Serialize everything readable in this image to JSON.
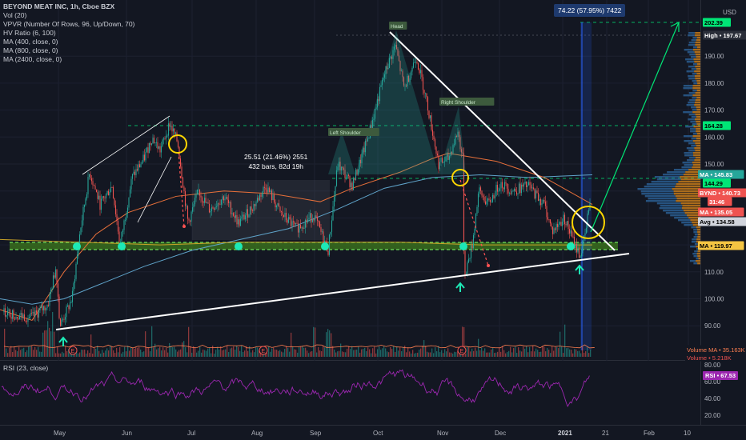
{
  "header": {
    "title": "BEYOND MEAT INC, 1h, Cboe BZX",
    "indicators": [
      "Vol (20)",
      "VPVR (Number Of Rows, 96, Up/Down, 70)",
      "HV Ratio (6, 100)",
      "MA (400, close, 0)",
      "MA (800, close, 0)",
      "MA (2400, close, 0)"
    ],
    "currency": "USD"
  },
  "rsi_panel": {
    "title": "RSI (23, close)"
  },
  "measure_top": "74.22 (57.95%) 7422",
  "measure_box": {
    "line1": "25.51 (21.46%) 2551",
    "line2": "432 bars, 82d 19h"
  },
  "annotations": {
    "head": "Head",
    "left_shoulder": "Left Shoulder",
    "right_shoulder": "Right Shoulder",
    "earnings": "E"
  },
  "price_axis": {
    "ticks": [
      "190.00",
      "180.00",
      "170.00",
      "160.00",
      "150.00",
      "110.00",
      "100.00",
      "90.00"
    ]
  },
  "price_tags": [
    {
      "id": "target",
      "text": "202.39",
      "color": "#00e676",
      "text_color": "#000000"
    },
    {
      "id": "high",
      "text": "High • 197.67",
      "color": "#2a2e39",
      "text_color": "#ffffff"
    },
    {
      "id": "level164",
      "text": "164.28",
      "color": "#00e676",
      "text_color": "#000000"
    },
    {
      "id": "ma_upper",
      "text": "MA • 145.83",
      "color": "#26a69a",
      "text_color": "#ffffff"
    },
    {
      "id": "level144",
      "text": "144.29",
      "color": "#00e676",
      "text_color": "#000000"
    },
    {
      "id": "bynd",
      "text": "BYND • 140.73",
      "color": "#ef5350",
      "text_color": "#ffffff"
    },
    {
      "id": "timer",
      "text": "31:46",
      "color": "#ef5350",
      "text_color": "#ffffff"
    },
    {
      "id": "ma135",
      "text": "MA • 135.05",
      "color": "#ef5350",
      "text_color": "#ffffff"
    },
    {
      "id": "avg",
      "text": "Avg • 134.58",
      "color": "#d1d4dc",
      "text_color": "#000000"
    },
    {
      "id": "ma120",
      "text": "MA • 119.97",
      "color": "#f5c542",
      "text_color": "#000000"
    }
  ],
  "volume_tags": [
    {
      "text": "Volume MA • 35.163K",
      "color": "#ff7f50"
    },
    {
      "text": "Volume • 5.218K",
      "color": "#ef5350"
    }
  ],
  "rsi_axis": {
    "ticks": [
      "80.00",
      "60.00",
      "40.00",
      "20.00"
    ],
    "tag": "RSI • 67.53"
  },
  "time_axis": {
    "labels": [
      "May",
      "Jun",
      "Jul",
      "Aug",
      "Sep",
      "Oct",
      "Nov",
      "Dec",
      "2021",
      "21",
      "Feb",
      "10"
    ]
  },
  "colors": {
    "background": "#131722",
    "up": "#26a69a",
    "down": "#ef5350",
    "trend": "#ffffff",
    "target": "#00e676",
    "rsi": "#9c27b0",
    "ma400": "#5fa3c9",
    "ma800": "#e8703a",
    "ma2400": "#c9a227",
    "circle": "#ffd600"
  }
}
